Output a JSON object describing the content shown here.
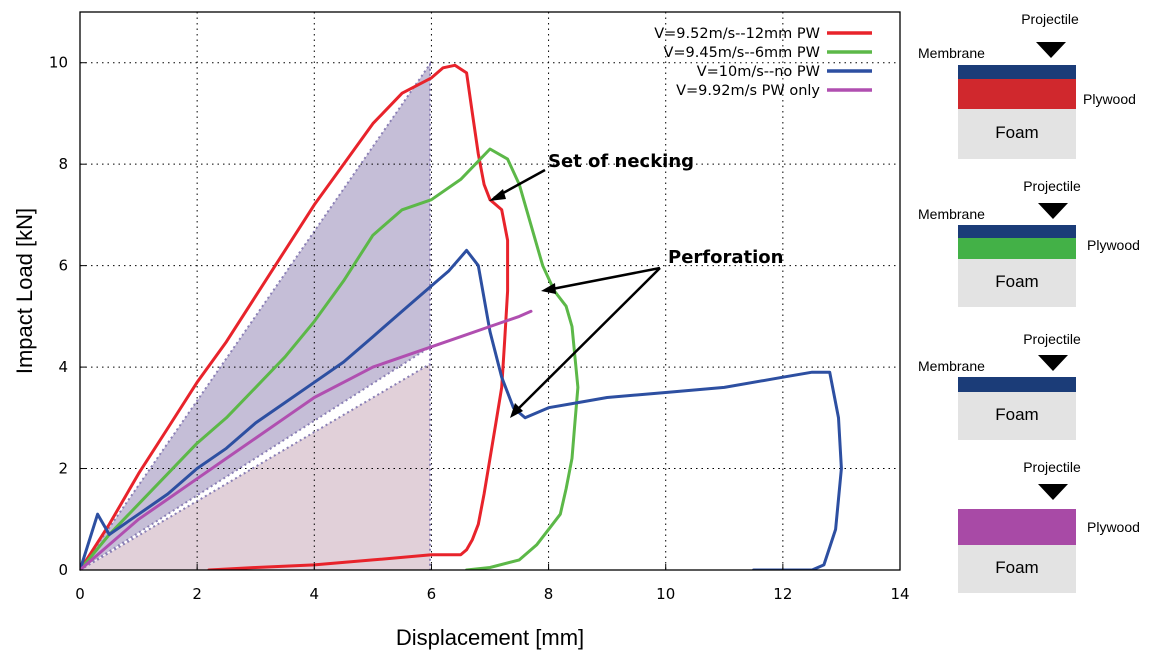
{
  "chart_data": {
    "type": "line",
    "xlabel": "Displacement [mm]",
    "ylabel": "Impact Load [kN]",
    "xlim": [
      0,
      14
    ],
    "ylim": [
      0,
      11
    ],
    "xticks": [
      "0",
      "2",
      "4",
      "6",
      "8",
      "10",
      "12",
      "14"
    ],
    "yticks": [
      "0",
      "2",
      "4",
      "6",
      "8",
      "10"
    ],
    "grid": true,
    "legend_position": "top-right",
    "series": [
      {
        "name": "V=9.52m/s--12mm PW",
        "color": "#e8232b",
        "x": [
          0,
          0.5,
          1,
          1.5,
          2,
          2.5,
          3,
          3.5,
          4,
          4.5,
          5,
          5.5,
          6,
          6.2,
          6.4,
          6.6,
          6.7,
          6.8,
          6.9,
          7.0,
          7.1,
          7.2,
          7.3,
          7.3,
          7.25,
          7.2,
          7.1,
          7.0,
          6.9,
          6.8,
          6.7,
          6.6,
          6.5,
          6.0,
          5.0,
          4.0,
          3.0,
          2.2
        ],
        "y": [
          0,
          0.9,
          1.9,
          2.8,
          3.7,
          4.5,
          5.4,
          6.3,
          7.2,
          8.0,
          8.8,
          9.4,
          9.7,
          9.9,
          9.95,
          9.8,
          9.0,
          8.2,
          7.6,
          7.3,
          7.2,
          7.1,
          6.5,
          5.5,
          4.5,
          3.6,
          2.9,
          2.2,
          1.5,
          0.9,
          0.6,
          0.4,
          0.3,
          0.3,
          0.2,
          0.1,
          0.05,
          0
        ]
      },
      {
        "name": "V=9.45m/s--6mm PW",
        "color": "#5cb848",
        "x": [
          0,
          0.5,
          1,
          1.5,
          2,
          2.5,
          3,
          3.5,
          4,
          4.5,
          5,
          5.5,
          6,
          6.5,
          7,
          7.3,
          7.5,
          7.7,
          7.9,
          8.1,
          8.3,
          8.4,
          8.5,
          8.45,
          8.4,
          8.3,
          8.2,
          8.0,
          7.8,
          7.5,
          7.0,
          6.6
        ],
        "y": [
          0,
          0.7,
          1.3,
          1.9,
          2.5,
          3.0,
          3.6,
          4.2,
          4.9,
          5.7,
          6.6,
          7.1,
          7.3,
          7.7,
          8.3,
          8.1,
          7.6,
          6.8,
          6.0,
          5.5,
          5.2,
          4.8,
          3.6,
          2.9,
          2.2,
          1.6,
          1.1,
          0.8,
          0.5,
          0.2,
          0.05,
          0
        ]
      },
      {
        "name": "V=10m/s--no PW",
        "color": "#2d4fa1",
        "x": [
          0,
          0.3,
          0.5,
          1,
          1.5,
          2,
          2.5,
          3,
          3.5,
          4,
          4.5,
          5,
          5.5,
          6,
          6.3,
          6.6,
          6.8,
          7.0,
          7.2,
          7.4,
          7.6,
          8,
          8.5,
          9,
          10,
          11,
          12,
          12.5,
          12.8,
          12.95,
          13.0,
          12.9,
          12.7,
          12.5,
          12.0,
          11.5
        ],
        "y": [
          0,
          1.1,
          0.7,
          1.1,
          1.5,
          2.0,
          2.4,
          2.9,
          3.3,
          3.7,
          4.1,
          4.6,
          5.1,
          5.6,
          5.9,
          6.3,
          6.0,
          4.7,
          3.8,
          3.2,
          3.0,
          3.2,
          3.3,
          3.4,
          3.5,
          3.6,
          3.8,
          3.9,
          3.9,
          3.0,
          2.0,
          0.8,
          0.1,
          0,
          0,
          0
        ]
      },
      {
        "name": "V=9.92m/s PW only",
        "color": "#b04fb0",
        "x": [
          0,
          0.5,
          1,
          1.5,
          2,
          2.5,
          3,
          3.5,
          4,
          4.5,
          5,
          5.5,
          6,
          6.5,
          7,
          7.5,
          7.7
        ],
        "y": [
          0,
          0.5,
          1.0,
          1.4,
          1.8,
          2.2,
          2.6,
          3.0,
          3.4,
          3.7,
          4.0,
          4.2,
          4.4,
          4.6,
          4.8,
          5.0,
          5.1
        ]
      }
    ],
    "annotations": [
      {
        "text": "Set of necking"
      },
      {
        "text": "Perforation"
      }
    ]
  },
  "diagrams": [
    {
      "projectile": "Projectile",
      "membrane": "Membrane",
      "plywood": "Plywood",
      "foam": "Foam",
      "plywood_color": "#d0282d"
    },
    {
      "projectile": "Projectile",
      "membrane": "Membrane",
      "plywood": "Plywood",
      "foam": "Foam",
      "plywood_color": "#43b147"
    },
    {
      "projectile": "Projectile",
      "membrane": "Membrane",
      "plywood": "",
      "foam": "Foam",
      "plywood_color": ""
    },
    {
      "projectile": "Projectile",
      "membrane": "",
      "plywood": "Plywood",
      "foam": "Foam",
      "plywood_color": "#a84aa6"
    }
  ]
}
